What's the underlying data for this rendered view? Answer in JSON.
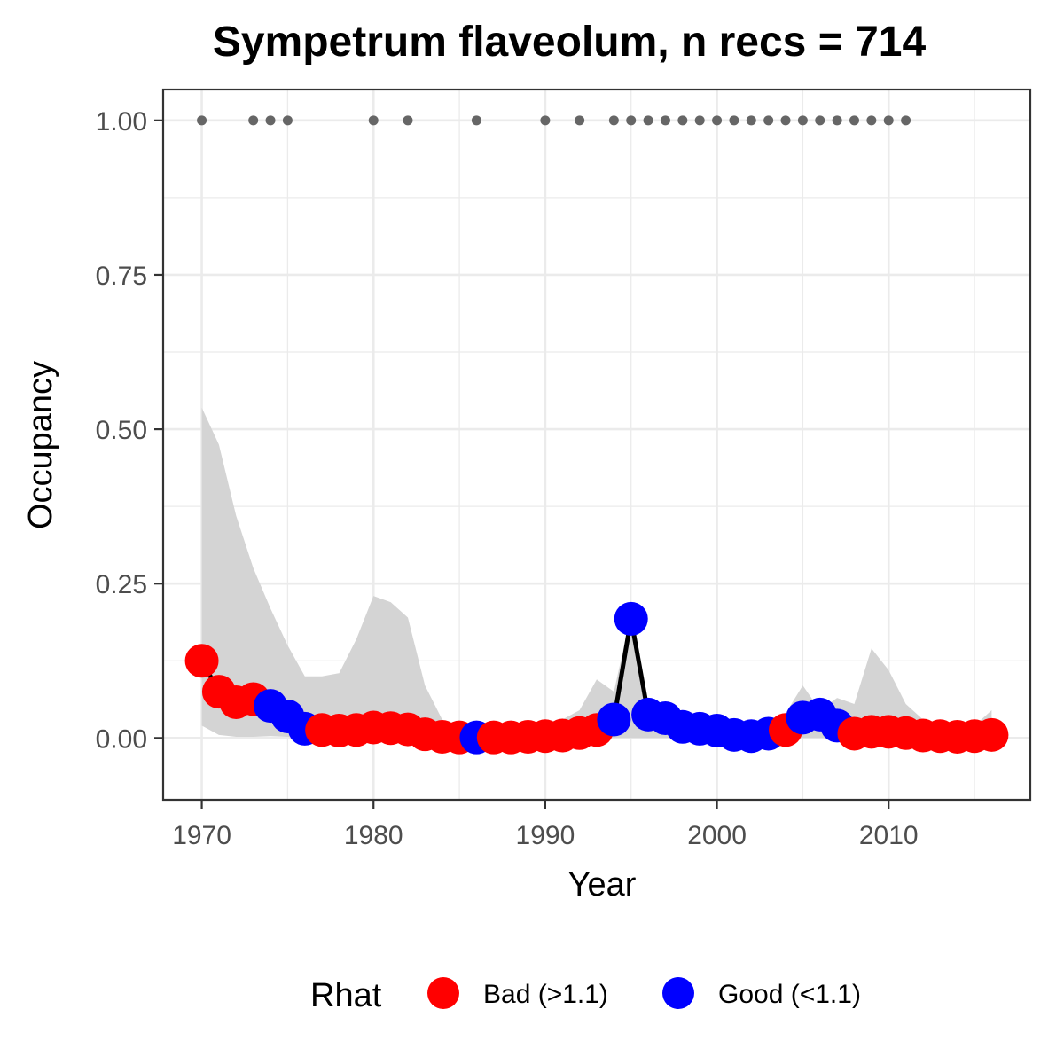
{
  "chart_data": {
    "type": "line",
    "title": "Sympetrum flaveolum, n recs = 714",
    "xlabel": "Year",
    "ylabel": "Occupancy",
    "xlim": [
      1967.75,
      2018.25
    ],
    "ylim": [
      -0.1,
      1.05
    ],
    "x_ticks": [
      1970,
      1980,
      1990,
      2000,
      2010
    ],
    "x_tick_labels": [
      "1970",
      "1980",
      "1990",
      "2000",
      "2010"
    ],
    "y_ticks": [
      0,
      0.25,
      0.5,
      0.75,
      1.0
    ],
    "y_tick_labels": [
      "0.00",
      "0.25",
      "0.50",
      "0.75",
      "1.00"
    ],
    "grid": true,
    "colors": {
      "bad": "#ff0000",
      "good": "#0000ff",
      "line": "#000000",
      "ribbon": "#d4d4d4",
      "record_points": "#666666",
      "grid": "#ebebeb",
      "panel_border": "#333333"
    },
    "legend": {
      "title": "Rhat",
      "position": "bottom",
      "items": [
        {
          "label": "Bad (>1.1)",
          "key": "bad"
        },
        {
          "label": "Good (<1.1)",
          "key": "good"
        }
      ]
    },
    "series": [
      {
        "x": [
          1970,
          1971,
          1972,
          1973,
          1974,
          1975,
          1976,
          1977,
          1978,
          1979,
          1980,
          1981,
          1982,
          1983,
          1984,
          1985,
          1986,
          1987,
          1988,
          1989,
          1990,
          1991,
          1992,
          1993,
          1994,
          1995,
          1996,
          1997,
          1998,
          1999,
          2000,
          2001,
          2002,
          2003,
          2004,
          2005,
          2006,
          2007,
          2008,
          2009,
          2010,
          2011,
          2012,
          2013,
          2014,
          2015,
          2016
        ],
        "y": [
          0.125,
          0.075,
          0.058,
          0.063,
          0.052,
          0.035,
          0.015,
          0.013,
          0.012,
          0.013,
          0.017,
          0.016,
          0.014,
          0.006,
          0.002,
          0.001,
          0.001,
          0.001,
          0.001,
          0.002,
          0.003,
          0.004,
          0.008,
          0.013,
          0.03,
          0.193,
          0.038,
          0.032,
          0.018,
          0.015,
          0.012,
          0.005,
          0.003,
          0.007,
          0.013,
          0.033,
          0.038,
          0.02,
          0.007,
          0.01,
          0.01,
          0.008,
          0.004,
          0.003,
          0.002,
          0.003,
          0.005
        ],
        "rhat": [
          "bad",
          "bad",
          "bad",
          "bad",
          "good",
          "good",
          "good",
          "bad",
          "bad",
          "bad",
          "bad",
          "bad",
          "bad",
          "bad",
          "bad",
          "bad",
          "good",
          "bad",
          "bad",
          "bad",
          "bad",
          "bad",
          "bad",
          "bad",
          "good",
          "good",
          "good",
          "good",
          "good",
          "good",
          "good",
          "good",
          "good",
          "good",
          "bad",
          "good",
          "good",
          "good",
          "bad",
          "bad",
          "bad",
          "bad",
          "bad",
          "bad",
          "bad",
          "bad",
          "bad"
        ],
        "lower": [
          0.02,
          0.005,
          0.002,
          0.002,
          0.003,
          0.002,
          0.001,
          0.0,
          0.0,
          0.0,
          0.0,
          0.0,
          0.0,
          0.0,
          0.0,
          0.0,
          0.0,
          0.0,
          0.0,
          0.0,
          0.0,
          0.0,
          0.0,
          0.0,
          0.0,
          0.0,
          0.0,
          0.0,
          0.0,
          0.0,
          0.0,
          0.0,
          0.0,
          0.0,
          0.0,
          0.0,
          0.0,
          0.0,
          0.0,
          0.0,
          0.0,
          0.0,
          0.0,
          0.0,
          0.0,
          0.0,
          0.0
        ],
        "upper": [
          0.535,
          0.475,
          0.36,
          0.275,
          0.21,
          0.15,
          0.1,
          0.1,
          0.105,
          0.16,
          0.23,
          0.22,
          0.195,
          0.085,
          0.03,
          0.015,
          0.012,
          0.012,
          0.015,
          0.02,
          0.025,
          0.03,
          0.045,
          0.095,
          0.075,
          0.2,
          0.055,
          0.045,
          0.03,
          0.025,
          0.02,
          0.015,
          0.012,
          0.02,
          0.04,
          0.085,
          0.045,
          0.065,
          0.055,
          0.145,
          0.11,
          0.055,
          0.03,
          0.02,
          0.015,
          0.02,
          0.045
        ]
      }
    ],
    "records": {
      "y": 1.0,
      "x": [
        1970,
        1973,
        1974,
        1975,
        1980,
        1982,
        1986,
        1990,
        1992,
        1994,
        1995,
        1996,
        1997,
        1998,
        1999,
        2000,
        2001,
        2002,
        2003,
        2004,
        2005,
        2006,
        2007,
        2008,
        2009,
        2010,
        2011
      ]
    }
  }
}
